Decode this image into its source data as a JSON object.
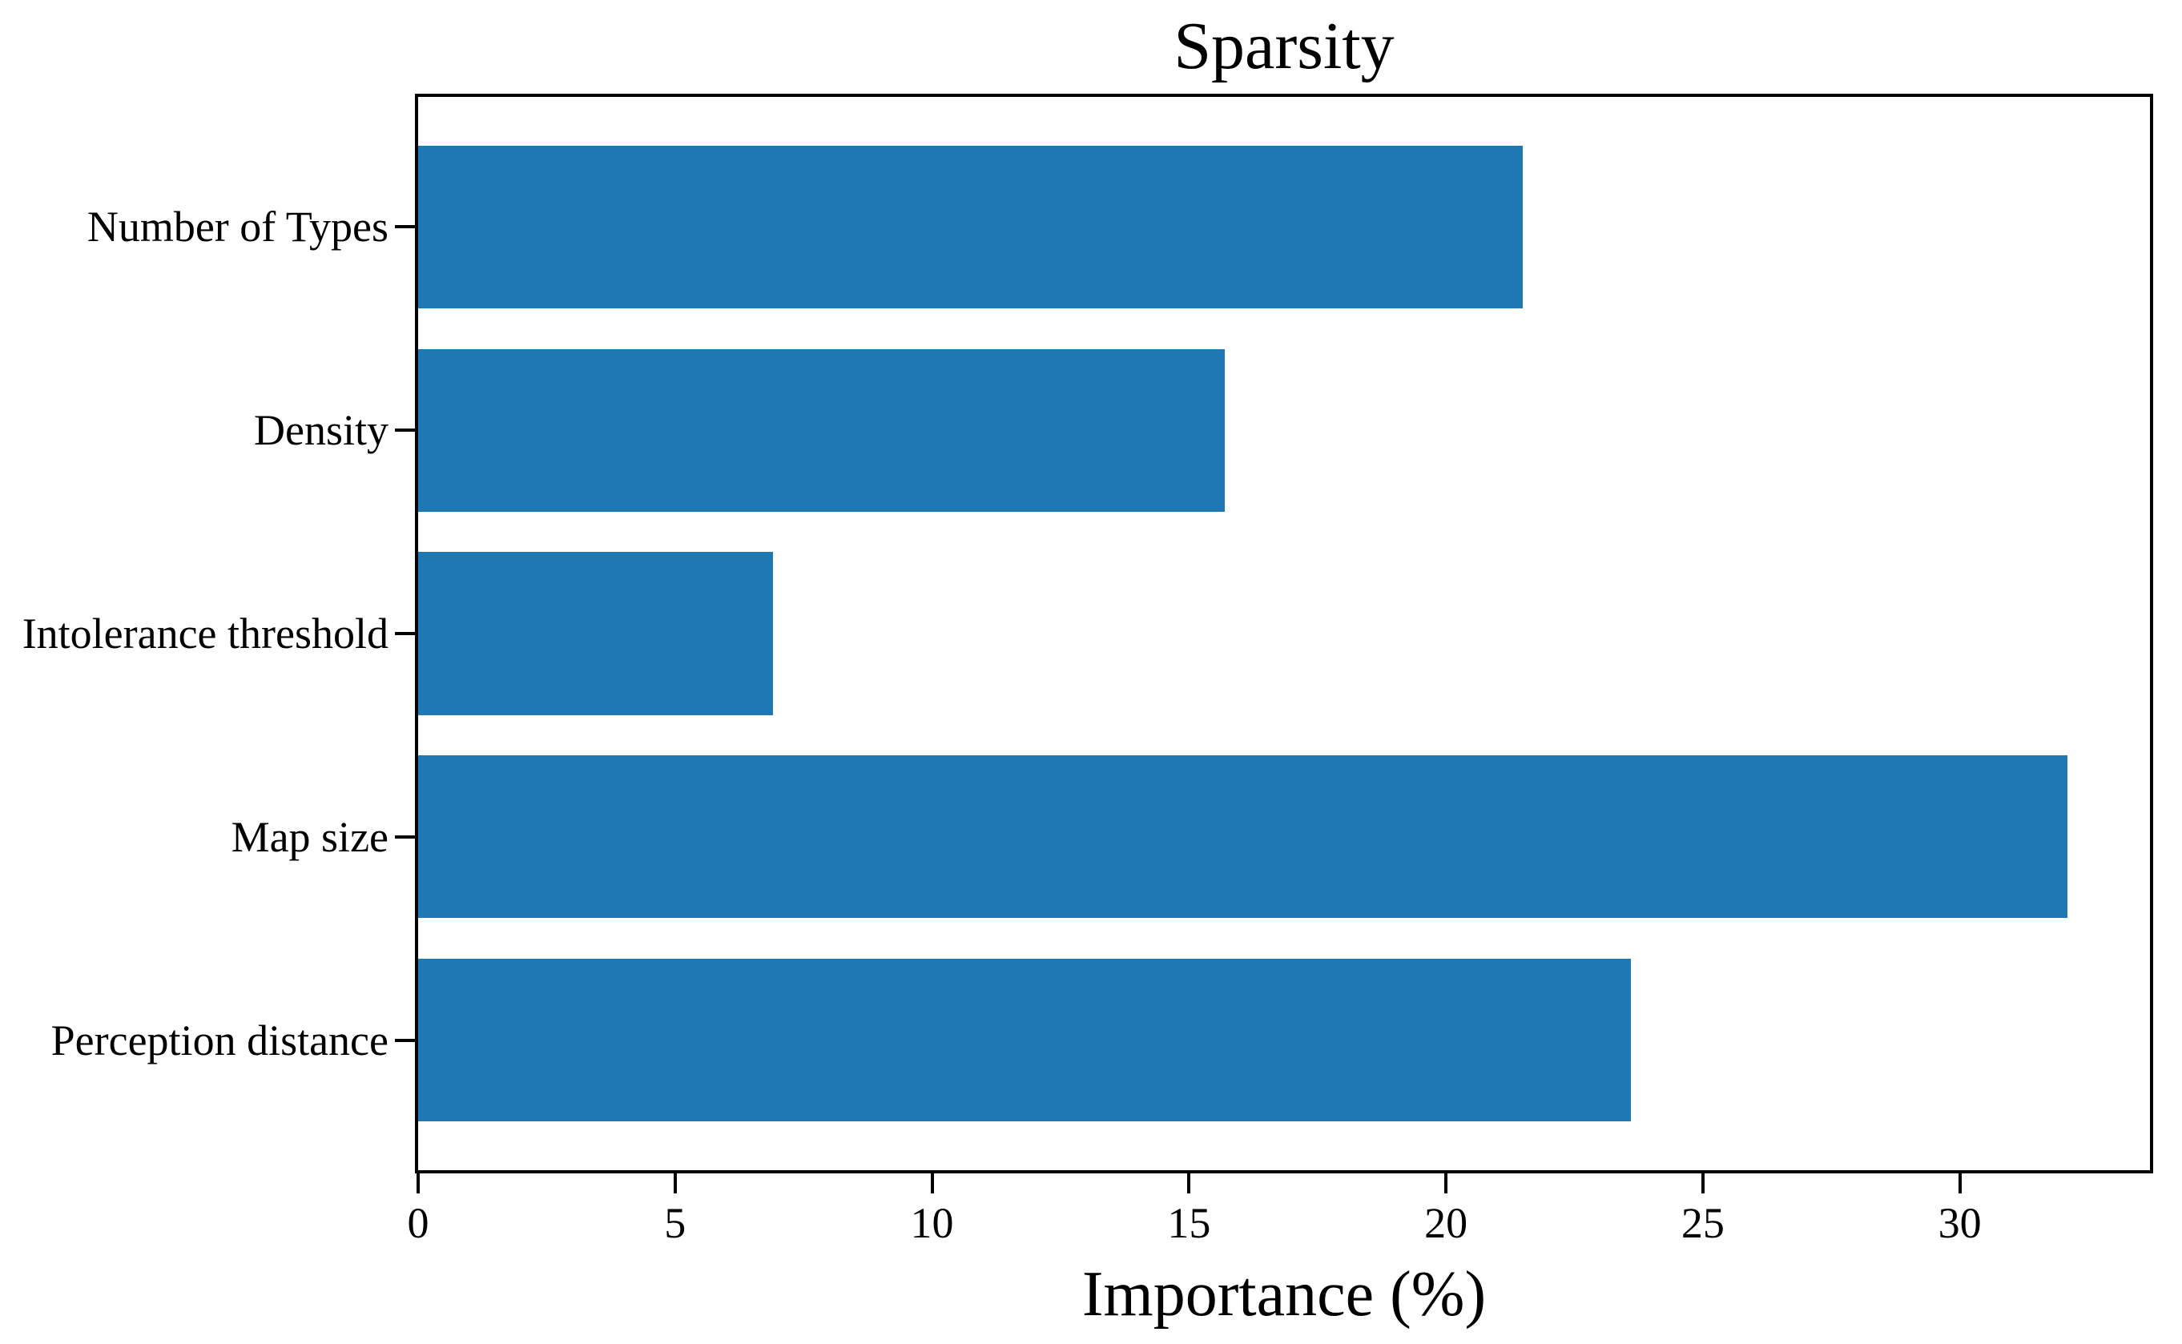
{
  "figure": {
    "background": "#ffffff"
  },
  "chart_data": {
    "type": "bar",
    "orientation": "horizontal",
    "title": "Sparsity",
    "xlabel": "Importance (%)",
    "ylabel": "",
    "categories": [
      "Number of Types",
      "Density",
      "Intolerance threshold",
      "Map size",
      "Perception distance"
    ],
    "values": [
      21.5,
      15.7,
      6.9,
      32.1,
      23.6
    ],
    "xticks": [
      "0",
      "5",
      "10",
      "15",
      "20",
      "25",
      "30"
    ],
    "xlim": [
      0,
      33.7
    ],
    "grid": false,
    "legend": "none",
    "bar_color": "#1f77b4",
    "axis_color": "#000000",
    "text_color": "#000000",
    "bar_height_frac": 0.8,
    "y_units": {
      "range": 5.28,
      "top_offset": 0.64
    }
  }
}
